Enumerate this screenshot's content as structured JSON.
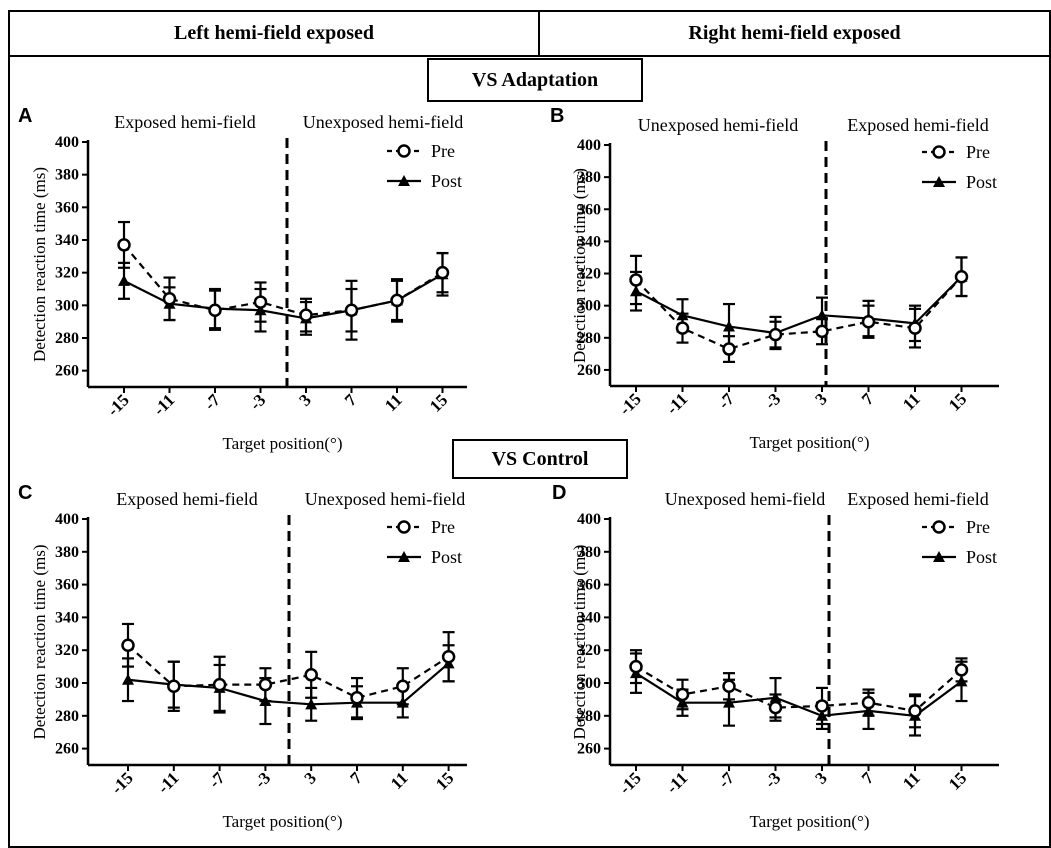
{
  "header": {
    "left_title": "Left hemi-field exposed",
    "right_title": "Right hemi-field exposed"
  },
  "sections": {
    "adaptation": "VS Adaptation",
    "control": "VS Control"
  },
  "chart_data": [
    {
      "type": "line",
      "panel": "A",
      "ylabel": "Detection reaction time (ms)",
      "xlabel": "Target position(°)",
      "categories": [
        "-15",
        "-11",
        "-7",
        "-3",
        "3",
        "7",
        "11",
        "15"
      ],
      "yticks": [
        260,
        280,
        300,
        320,
        340,
        360,
        380,
        400
      ],
      "ylim": [
        250,
        400
      ],
      "regions": [
        "Exposed hemi-field",
        "Unexposed hemi-field"
      ],
      "legend_position": "top-right",
      "series": [
        {
          "name": "Pre",
          "marker": "open-circle",
          "dash": "dashed",
          "values": [
            337,
            304,
            297,
            302,
            294,
            297,
            303,
            320
          ],
          "errors": [
            14,
            13,
            12,
            12,
            10,
            18,
            13,
            12
          ]
        },
        {
          "name": "Post",
          "marker": "filled-triangle",
          "dash": "solid",
          "values": [
            315,
            301,
            298,
            297,
            292,
            297,
            303,
            319
          ],
          "errors": [
            11,
            10,
            12,
            13,
            10,
            13,
            12,
            13
          ]
        }
      ]
    },
    {
      "type": "line",
      "panel": "B",
      "ylabel": "Detection reaction time (ms)",
      "xlabel": "Target position(°)",
      "categories": [
        "-15",
        "-11",
        "-7",
        "-3",
        "3",
        "7",
        "11",
        "15"
      ],
      "yticks": [
        260,
        280,
        300,
        320,
        340,
        360,
        380,
        400
      ],
      "ylim": [
        250,
        400
      ],
      "regions": [
        "Unexposed hemi-field",
        "Exposed hemi-field"
      ],
      "legend_position": "top-right",
      "series": [
        {
          "name": "Pre",
          "marker": "open-circle",
          "dash": "dashed",
          "values": [
            316,
            286,
            273,
            282,
            284,
            290,
            286,
            318
          ],
          "errors": [
            15,
            9,
            8,
            8,
            8,
            10,
            12,
            12
          ]
        },
        {
          "name": "Post",
          "marker": "filled-triangle",
          "dash": "solid",
          "values": [
            309,
            294,
            287,
            283,
            294,
            292,
            289,
            318
          ],
          "errors": [
            12,
            10,
            14,
            10,
            11,
            11,
            11,
            12
          ]
        }
      ]
    },
    {
      "type": "line",
      "panel": "C",
      "ylabel": "Detection reaction time (ms)",
      "xlabel": "Target position(°)",
      "categories": [
        "-15",
        "-11",
        "-7",
        "-3",
        "3",
        "7",
        "11",
        "15"
      ],
      "yticks": [
        260,
        280,
        300,
        320,
        340,
        360,
        380,
        400
      ],
      "ylim": [
        250,
        400
      ],
      "regions": [
        "Exposed hemi-field",
        "Unexposed hemi-field"
      ],
      "legend_position": "top-right",
      "series": [
        {
          "name": "Pre",
          "marker": "open-circle",
          "dash": "dashed",
          "values": [
            323,
            298,
            299,
            299,
            305,
            291,
            298,
            316
          ],
          "errors": [
            13,
            15,
            17,
            10,
            14,
            12,
            11,
            15
          ]
        },
        {
          "name": "Post",
          "marker": "filled-triangle",
          "dash": "solid",
          "values": [
            302,
            299,
            297,
            289,
            287,
            288,
            288,
            312
          ],
          "errors": [
            13,
            14,
            14,
            14,
            10,
            10,
            9,
            11
          ]
        }
      ]
    },
    {
      "type": "line",
      "panel": "D",
      "ylabel": "Detection reaction time (ms)",
      "xlabel": "Target position(°)",
      "categories": [
        "-15",
        "-11",
        "-7",
        "-3",
        "3",
        "7",
        "11",
        "15"
      ],
      "yticks": [
        260,
        280,
        300,
        320,
        340,
        360,
        380,
        400
      ],
      "ylim": [
        250,
        400
      ],
      "regions": [
        "Unexposed hemi-field",
        "Exposed hemi-field"
      ],
      "legend_position": "top-right",
      "series": [
        {
          "name": "Pre",
          "marker": "open-circle",
          "dash": "dashed",
          "values": [
            310,
            293,
            298,
            285,
            286,
            288,
            283,
            308
          ],
          "errors": [
            10,
            9,
            8,
            8,
            11,
            8,
            10,
            7
          ]
        },
        {
          "name": "Post",
          "marker": "filled-triangle",
          "dash": "solid",
          "values": [
            306,
            288,
            288,
            291,
            280,
            283,
            280,
            301
          ],
          "errors": [
            12,
            8,
            14,
            12,
            8,
            11,
            12,
            12
          ]
        }
      ]
    }
  ]
}
